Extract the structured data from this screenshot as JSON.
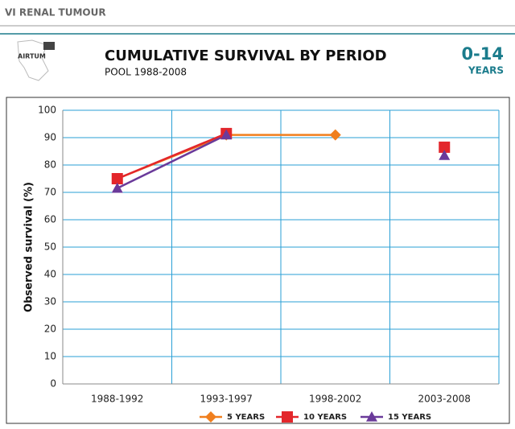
{
  "header": {
    "section": "VI RENAL TUMOUR",
    "logo": "AIRTUM"
  },
  "chart_data": {
    "type": "line",
    "title": "CUMULATIVE SURVIVAL BY PERIOD",
    "subtitle": "POOL 1988-2008",
    "age": "0-14",
    "age_unit": "YEARS",
    "ylabel": "Observed survival (%)",
    "categories": [
      "1988-1992",
      "1993-1997",
      "1998-2002",
      "2003-2008"
    ],
    "series": [
      {
        "name": "5 YEARS",
        "color": "#f07f1e",
        "marker": "diamond",
        "values": [
          75,
          91,
          91,
          null
        ]
      },
      {
        "name": "10 YEARS",
        "color": "#e3262b",
        "marker": "square",
        "values": [
          75,
          91.5,
          null,
          86.5
        ]
      },
      {
        "name": "15 YEARS",
        "color": "#6a3a9a",
        "marker": "triangle",
        "values": [
          71.5,
          91,
          null,
          83.5
        ]
      }
    ],
    "ylim": [
      0,
      100
    ],
    "yticks": [
      0,
      10,
      20,
      30,
      40,
      50,
      60,
      70,
      80,
      90,
      100
    ],
    "grid": true,
    "legend": "bottom"
  }
}
